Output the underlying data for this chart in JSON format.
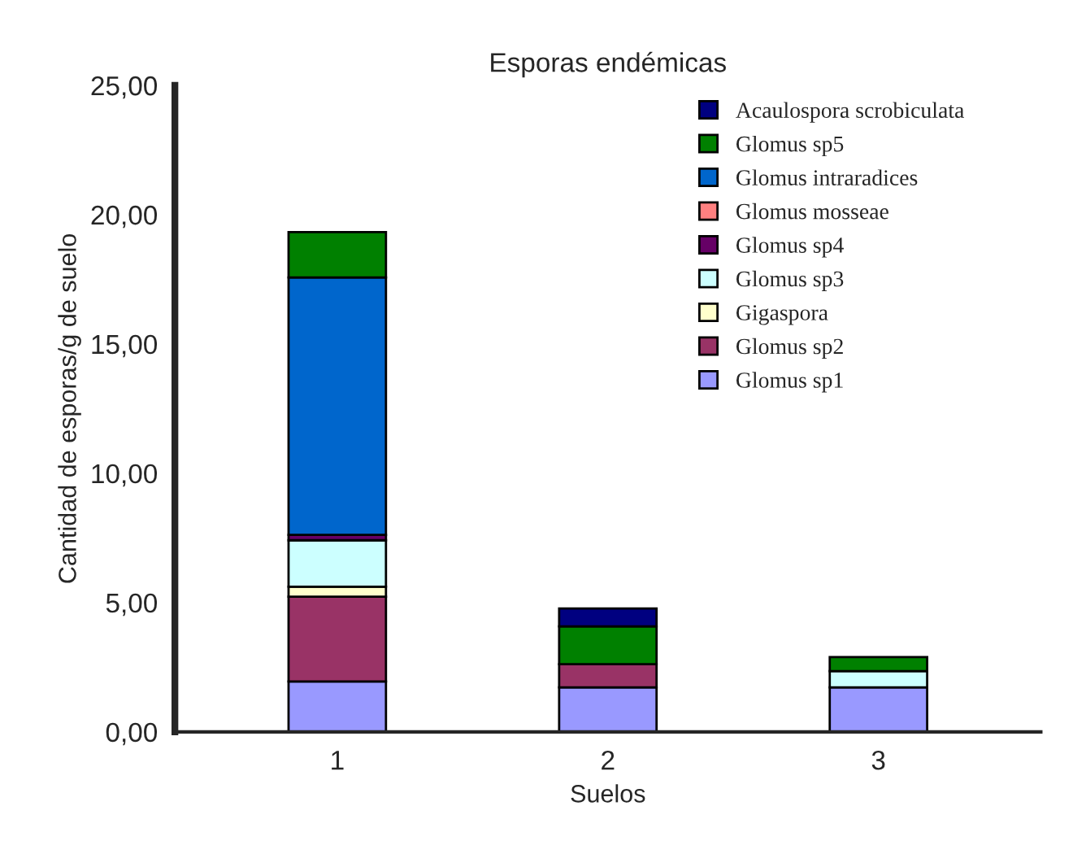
{
  "chart_data": {
    "type": "bar",
    "title": "Esporas endémicas",
    "xlabel": "Suelos",
    "ylabel": "Cantidad de esporas/g de suelo",
    "categories": [
      "1",
      "2",
      "3"
    ],
    "stacked": true,
    "legend": "top right",
    "grid": false,
    "ylim": [
      0,
      25
    ],
    "yticks": [
      {
        "value": 0,
        "label": "0,00"
      },
      {
        "value": 5,
        "label": "5,00"
      },
      {
        "value": 10,
        "label": "10,00"
      },
      {
        "value": 15,
        "label": "15,00"
      },
      {
        "value": 20,
        "label": "20,00"
      },
      {
        "value": 25,
        "label": "25,00"
      }
    ],
    "series": [
      {
        "name": "Glomus sp1",
        "color": "#9999ff",
        "values": [
          1.95,
          1.72,
          1.72
        ]
      },
      {
        "name": "Glomus sp2",
        "color": "#993366",
        "values": [
          3.28,
          0.9,
          null
        ]
      },
      {
        "name": "Gigaspora",
        "color": "#ffffcc",
        "values": [
          0.38,
          null,
          null
        ]
      },
      {
        "name": "Glomus sp3",
        "color": "#ccffff",
        "values": [
          1.8,
          null,
          0.63
        ]
      },
      {
        "name": "Glomus sp4",
        "color": "#660066",
        "values": [
          0.21,
          null,
          null
        ]
      },
      {
        "name": "Glomus mosseae",
        "color": "#ff8080",
        "values": [
          null,
          null,
          null
        ]
      },
      {
        "name": "Glomus intraradices",
        "color": "#0066cc",
        "values": [
          9.95,
          null,
          null
        ]
      },
      {
        "name": "Glomus sp5",
        "color": "#008000",
        "values": [
          1.76,
          1.46,
          0.54
        ]
      },
      {
        "name": "Acaulospora scrobiculata",
        "color": "#000080",
        "values": [
          null,
          0.69,
          null
        ]
      }
    ]
  }
}
